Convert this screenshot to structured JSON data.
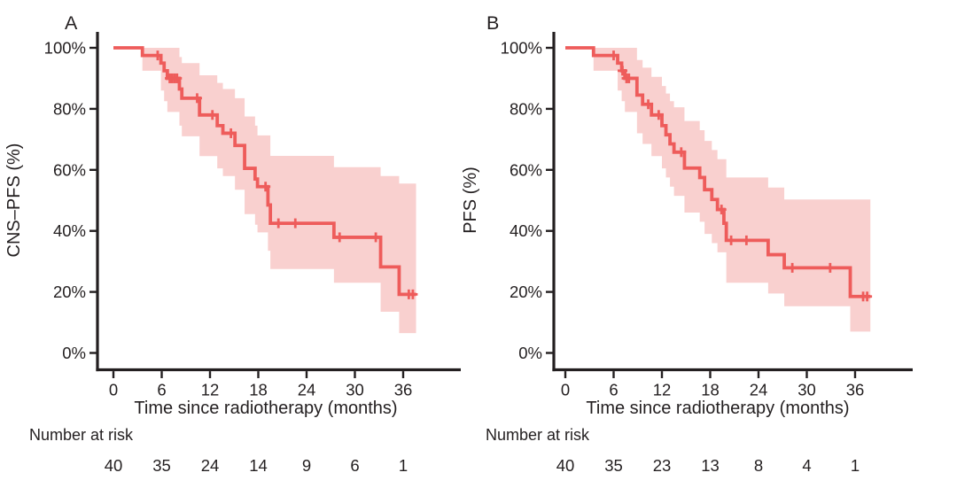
{
  "figure": {
    "background": "#ffffff"
  },
  "colors": {
    "line": "#ee5c5b",
    "band": "#f9d0cf",
    "axis": "#231f20",
    "text": "#231f20"
  },
  "chart_data": [
    {
      "type": "line",
      "subtype": "kaplan-meier-step",
      "panel_label": "A",
      "ylabel": "CNS–PFS (%)",
      "xlabel": "Time since radiotherapy (months)",
      "xlim": [
        0,
        39
      ],
      "ylim": [
        0,
        100
      ],
      "grid": false,
      "legend": "none",
      "x_ticks": [
        0,
        6,
        12,
        18,
        24,
        30,
        36
      ],
      "y_ticks": [
        {
          "v": 0,
          "label": "0%"
        },
        {
          "v": 20,
          "label": "20%"
        },
        {
          "v": 40,
          "label": "40%"
        },
        {
          "v": 60,
          "label": "60%"
        },
        {
          "v": 80,
          "label": "80%"
        },
        {
          "v": 100,
          "label": "100%"
        }
      ],
      "steps": [
        [
          0,
          100
        ],
        [
          3.6,
          97.5
        ],
        [
          5.9,
          95
        ],
        [
          6.3,
          92.5
        ],
        [
          6.7,
          90
        ],
        [
          8.2,
          86.5
        ],
        [
          8.5,
          83.5
        ],
        [
          10.7,
          78
        ],
        [
          12.9,
          74.5
        ],
        [
          13.6,
          72
        ],
        [
          15.1,
          68
        ],
        [
          16.3,
          60.5
        ],
        [
          17.6,
          57
        ],
        [
          17.9,
          54.5
        ],
        [
          19.2,
          48.5
        ],
        [
          19.5,
          42.5
        ],
        [
          27.4,
          37.9
        ],
        [
          33.2,
          28.2
        ],
        [
          35.5,
          19.2
        ],
        [
          37.6,
          19.2
        ]
      ],
      "censors": [
        [
          5.5,
          97.5
        ],
        [
          7.0,
          90
        ],
        [
          7.3,
          90
        ],
        [
          7.6,
          90
        ],
        [
          7.9,
          90
        ],
        [
          10.4,
          83.5
        ],
        [
          12.3,
          78
        ],
        [
          14.6,
          72
        ],
        [
          18.9,
          54.5
        ],
        [
          20.5,
          42.5
        ],
        [
          22.6,
          42.5
        ],
        [
          28.1,
          37.9
        ],
        [
          32.6,
          37.9
        ],
        [
          36.7,
          19.2
        ],
        [
          37.2,
          19.2
        ]
      ],
      "ci_upper": [
        [
          3.6,
          100
        ],
        [
          8.2,
          97
        ],
        [
          8.5,
          95
        ],
        [
          10.7,
          91
        ],
        [
          12.9,
          88.5
        ],
        [
          13.6,
          86.5
        ],
        [
          15.1,
          83.5
        ],
        [
          16.3,
          77.5
        ],
        [
          17.6,
          74.5
        ],
        [
          17.9,
          71.3
        ],
        [
          19.5,
          64.6
        ],
        [
          27.4,
          60.9
        ],
        [
          33.2,
          58
        ],
        [
          35.5,
          55.5
        ],
        [
          37.6,
          55.5
        ]
      ],
      "ci_lower": [
        [
          3.6,
          92.5
        ],
        [
          5.9,
          86
        ],
        [
          6.3,
          82.5
        ],
        [
          6.7,
          79
        ],
        [
          8.2,
          74.5
        ],
        [
          8.5,
          71
        ],
        [
          10.7,
          64.5
        ],
        [
          12.9,
          60.5
        ],
        [
          13.6,
          58
        ],
        [
          15.1,
          53.5
        ],
        [
          16.3,
          45.5
        ],
        [
          17.6,
          42
        ],
        [
          17.9,
          39.5
        ],
        [
          19.2,
          33.5
        ],
        [
          19.5,
          27.5
        ],
        [
          27.4,
          23
        ],
        [
          33.2,
          13.5
        ],
        [
          35.5,
          6.5
        ],
        [
          37.6,
          6.5
        ]
      ],
      "risk_label": "Number at risk",
      "risk_times": [
        0,
        6,
        12,
        18,
        24,
        30,
        36
      ],
      "risk_numbers": [
        40,
        35,
        24,
        14,
        9,
        6,
        1
      ]
    },
    {
      "type": "line",
      "subtype": "kaplan-meier-step",
      "panel_label": "B",
      "ylabel": "PFS (%)",
      "xlabel": "Time since radiotherapy (months)",
      "xlim": [
        0,
        39
      ],
      "ylim": [
        0,
        100
      ],
      "grid": false,
      "legend": "none",
      "x_ticks": [
        0,
        6,
        12,
        18,
        24,
        30,
        36
      ],
      "y_ticks": [
        {
          "v": 0,
          "label": "0%"
        },
        {
          "v": 20,
          "label": "20%"
        },
        {
          "v": 40,
          "label": "40%"
        },
        {
          "v": 60,
          "label": "60%"
        },
        {
          "v": 80,
          "label": "80%"
        },
        {
          "v": 100,
          "label": "100%"
        }
      ],
      "steps": [
        [
          0,
          100
        ],
        [
          3.5,
          97.5
        ],
        [
          6.5,
          95
        ],
        [
          7.0,
          92.5
        ],
        [
          7.4,
          90
        ],
        [
          8.9,
          84.5
        ],
        [
          9.6,
          81.5
        ],
        [
          10.7,
          78
        ],
        [
          12.0,
          74.5
        ],
        [
          12.5,
          71.5
        ],
        [
          13.0,
          68.5
        ],
        [
          13.5,
          65.8
        ],
        [
          14.8,
          60.6
        ],
        [
          16.7,
          57.5
        ],
        [
          17.3,
          53.5
        ],
        [
          18.2,
          50.3
        ],
        [
          18.9,
          47
        ],
        [
          19.7,
          42.5
        ],
        [
          20.0,
          36.9
        ],
        [
          25.2,
          32.2
        ],
        [
          27.2,
          27.9
        ],
        [
          35.4,
          18.5
        ],
        [
          37.9,
          18.5
        ]
      ],
      "censors": [
        [
          6.0,
          97.5
        ],
        [
          7.1,
          92.5
        ],
        [
          7.6,
          90
        ],
        [
          7.9,
          90
        ],
        [
          10.3,
          81.5
        ],
        [
          11.6,
          78
        ],
        [
          14.4,
          65.8
        ],
        [
          19.4,
          47
        ],
        [
          20.6,
          36.9
        ],
        [
          22.5,
          36.9
        ],
        [
          28.2,
          27.9
        ],
        [
          32.9,
          27.9
        ],
        [
          37.0,
          18.5
        ],
        [
          37.5,
          18.5
        ]
      ],
      "ci_upper": [
        [
          3.5,
          100
        ],
        [
          8.9,
          96
        ],
        [
          9.6,
          93.5
        ],
        [
          10.7,
          90.5
        ],
        [
          12.0,
          87.5
        ],
        [
          12.5,
          85
        ],
        [
          13.0,
          82.5
        ],
        [
          13.5,
          80.5
        ],
        [
          14.8,
          76
        ],
        [
          16.7,
          73
        ],
        [
          17.3,
          69.5
        ],
        [
          18.2,
          66.5
        ],
        [
          18.9,
          63.5
        ],
        [
          20.0,
          57.5
        ],
        [
          25.2,
          54.2
        ],
        [
          27.2,
          50.3
        ],
        [
          37.9,
          50.3
        ]
      ],
      "ci_lower": [
        [
          3.5,
          92.5
        ],
        [
          6.5,
          86
        ],
        [
          7.0,
          82.5
        ],
        [
          7.4,
          79
        ],
        [
          8.9,
          72
        ],
        [
          9.6,
          68.5
        ],
        [
          10.7,
          64.5
        ],
        [
          12.0,
          60.5
        ],
        [
          12.5,
          57.5
        ],
        [
          13.0,
          54.5
        ],
        [
          13.5,
          51.5
        ],
        [
          14.8,
          46
        ],
        [
          16.7,
          43
        ],
        [
          17.3,
          39
        ],
        [
          18.2,
          36
        ],
        [
          18.9,
          33
        ],
        [
          20.0,
          23
        ],
        [
          25.2,
          19.5
        ],
        [
          27.2,
          15.3
        ],
        [
          35.4,
          7
        ],
        [
          37.9,
          7
        ]
      ],
      "risk_label": "Number at risk",
      "risk_times": [
        0,
        6,
        12,
        18,
        24,
        30,
        36
      ],
      "risk_numbers": [
        40,
        35,
        23,
        13,
        8,
        4,
        1
      ]
    }
  ]
}
